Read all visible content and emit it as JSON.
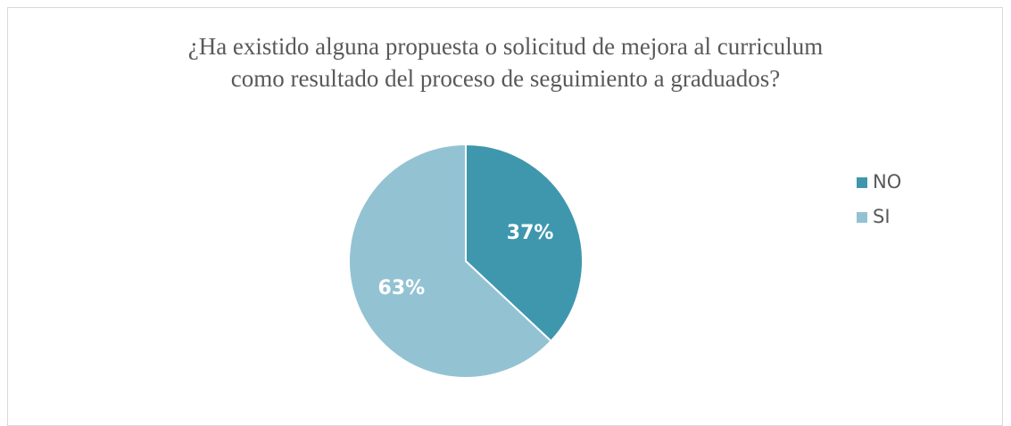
{
  "chart_data": {
    "type": "pie",
    "title": "¿Ha existido alguna propuesta o solicitud de mejora al curriculum como resultado del proceso de seguimiento a graduados?",
    "categories": [
      "NO",
      "SI"
    ],
    "values": [
      37,
      63
    ],
    "value_labels": [
      "37%",
      "63%"
    ],
    "colors": [
      "#3f97ae",
      "#93c3d3"
    ],
    "legend": "right"
  }
}
